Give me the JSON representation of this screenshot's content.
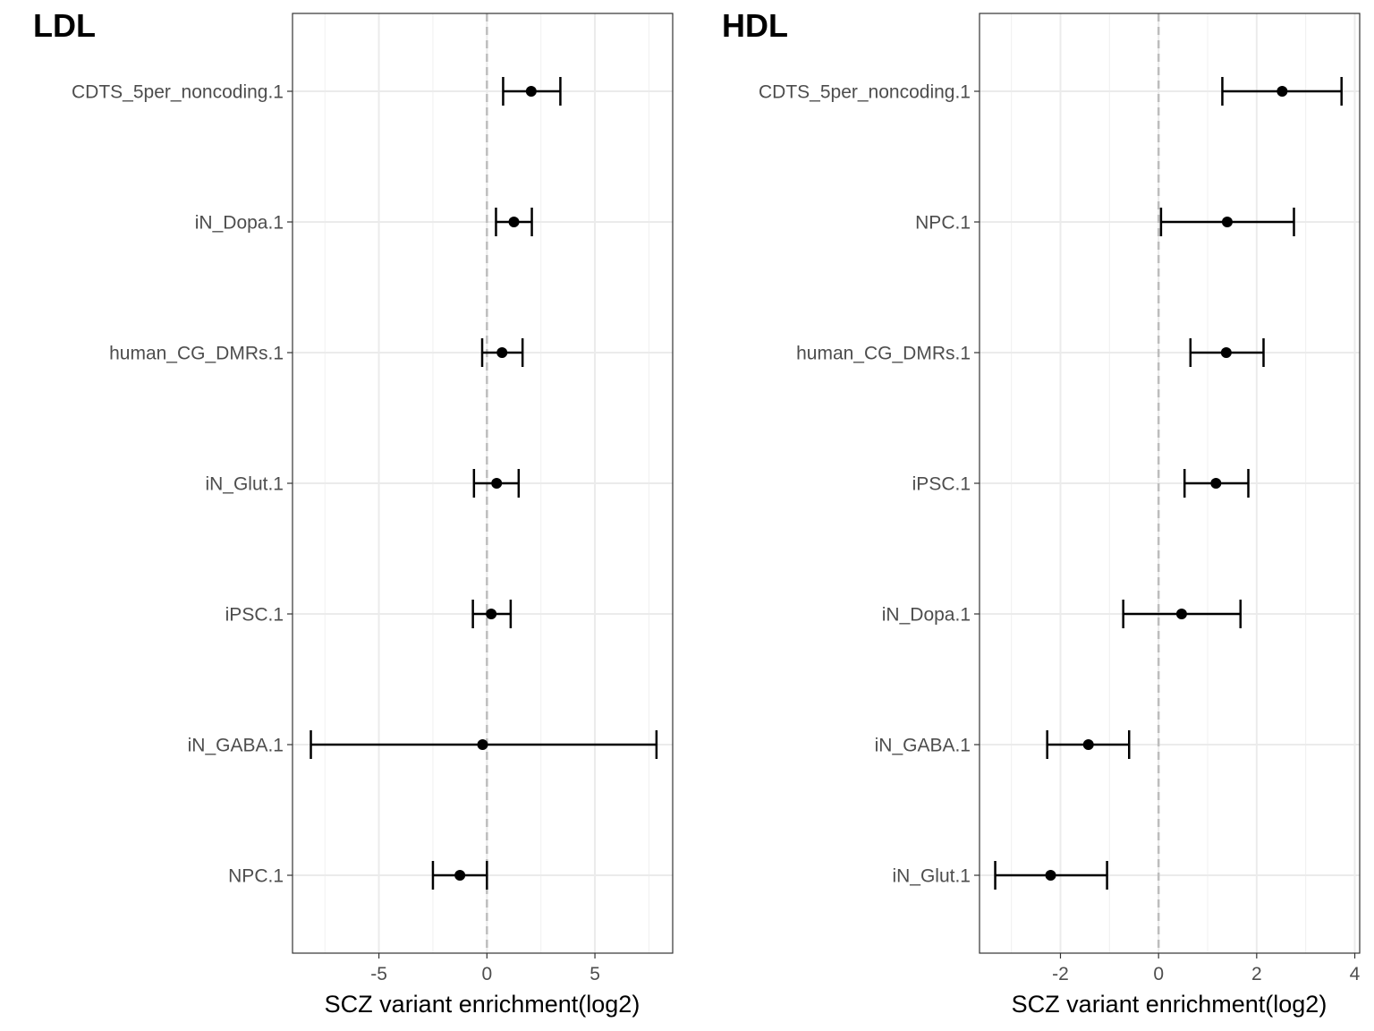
{
  "chart_data": [
    {
      "type": "scatter",
      "title": "LDL",
      "xlabel": "SCZ variant enrichment(log2)",
      "ylabel": "",
      "xlim": [
        -9.0,
        8.6
      ],
      "xticks": [
        -5,
        0,
        5
      ],
      "xtick_labels": [
        "-5",
        "0",
        "5"
      ],
      "grid": true,
      "reference_line": 0,
      "categories": [
        "CDTS_5per_noncoding.1",
        "iN_Dopa.1",
        "human_CG_DMRs.1",
        "iN_Glut.1",
        "iPSC.1",
        "iN_GABA.1",
        "NPC.1"
      ],
      "estimate": [
        2.05,
        1.25,
        0.7,
        0.45,
        0.2,
        -0.2,
        -1.25
      ],
      "ci_low": [
        0.75,
        0.42,
        -0.22,
        -0.6,
        -0.65,
        -8.15,
        -2.5
      ],
      "ci_high": [
        3.4,
        2.08,
        1.65,
        1.47,
        1.1,
        7.85,
        0.0
      ]
    },
    {
      "type": "scatter",
      "title": "HDL",
      "xlabel": "SCZ variant enrichment(log2)",
      "ylabel": "",
      "xlim": [
        -3.65,
        4.1
      ],
      "xticks": [
        -2,
        0,
        2,
        4
      ],
      "xtick_labels": [
        "-2",
        "0",
        "2",
        "4"
      ],
      "grid": true,
      "reference_line": 0,
      "categories": [
        "CDTS_5per_noncoding.1",
        "NPC.1",
        "human_CG_DMRs.1",
        "iPSC.1",
        "iN_Dopa.1",
        "iN_GABA.1",
        "iN_Glut.1"
      ],
      "estimate": [
        2.52,
        1.4,
        1.38,
        1.17,
        0.47,
        -1.43,
        -2.2
      ],
      "ci_low": [
        1.3,
        0.05,
        0.65,
        0.53,
        -0.72,
        -2.27,
        -3.33
      ],
      "ci_high": [
        3.73,
        2.76,
        2.14,
        1.83,
        1.67,
        -0.6,
        -1.05
      ]
    }
  ]
}
